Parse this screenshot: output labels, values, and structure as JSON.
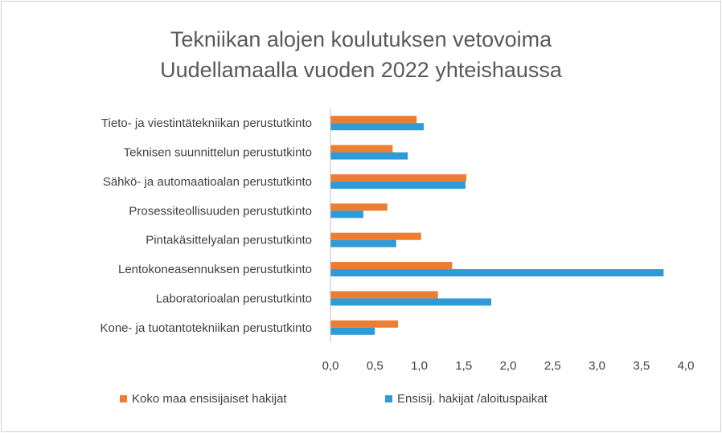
{
  "chart_data": {
    "type": "bar",
    "orientation": "horizontal",
    "title": [
      "Tekniikan alojen koulutuksen vetovoima",
      "Uudellamaalla vuoden 2022 yhteishaussa"
    ],
    "categories": [
      "Tieto- ja viestintätekniikan perustutkinto",
      "Teknisen suunnittelun perustutkinto",
      "Sähkö- ja automaatioalan perustutkinto",
      "Prosessiteollisuuden perustutkinto",
      "Pintakäsittelyalan perustutkinto",
      "Lentokoneasennuksen perustutkinto",
      "Laboratorioalan perustutkinto",
      "Kone- ja tuotantotekniikan perustutkinto"
    ],
    "series": [
      {
        "name": "Koko maa ensisijaiset hakijat",
        "color": "#ED7D31",
        "values": [
          0.97,
          0.7,
          1.53,
          0.64,
          1.02,
          1.37,
          1.21,
          0.76
        ]
      },
      {
        "name": "Ensisij. hakijat /aloituspaikat",
        "color": "#2E9BD6",
        "values": [
          1.05,
          0.87,
          1.52,
          0.37,
          0.74,
          3.75,
          1.81,
          0.5
        ]
      }
    ],
    "xlim": [
      0,
      4
    ],
    "xticks": [
      "0,0",
      "0,5",
      "1,0",
      "1,5",
      "2,0",
      "2,5",
      "3,0",
      "3,5",
      "4,0"
    ],
    "grid": false,
    "legend_position": "bottom"
  }
}
